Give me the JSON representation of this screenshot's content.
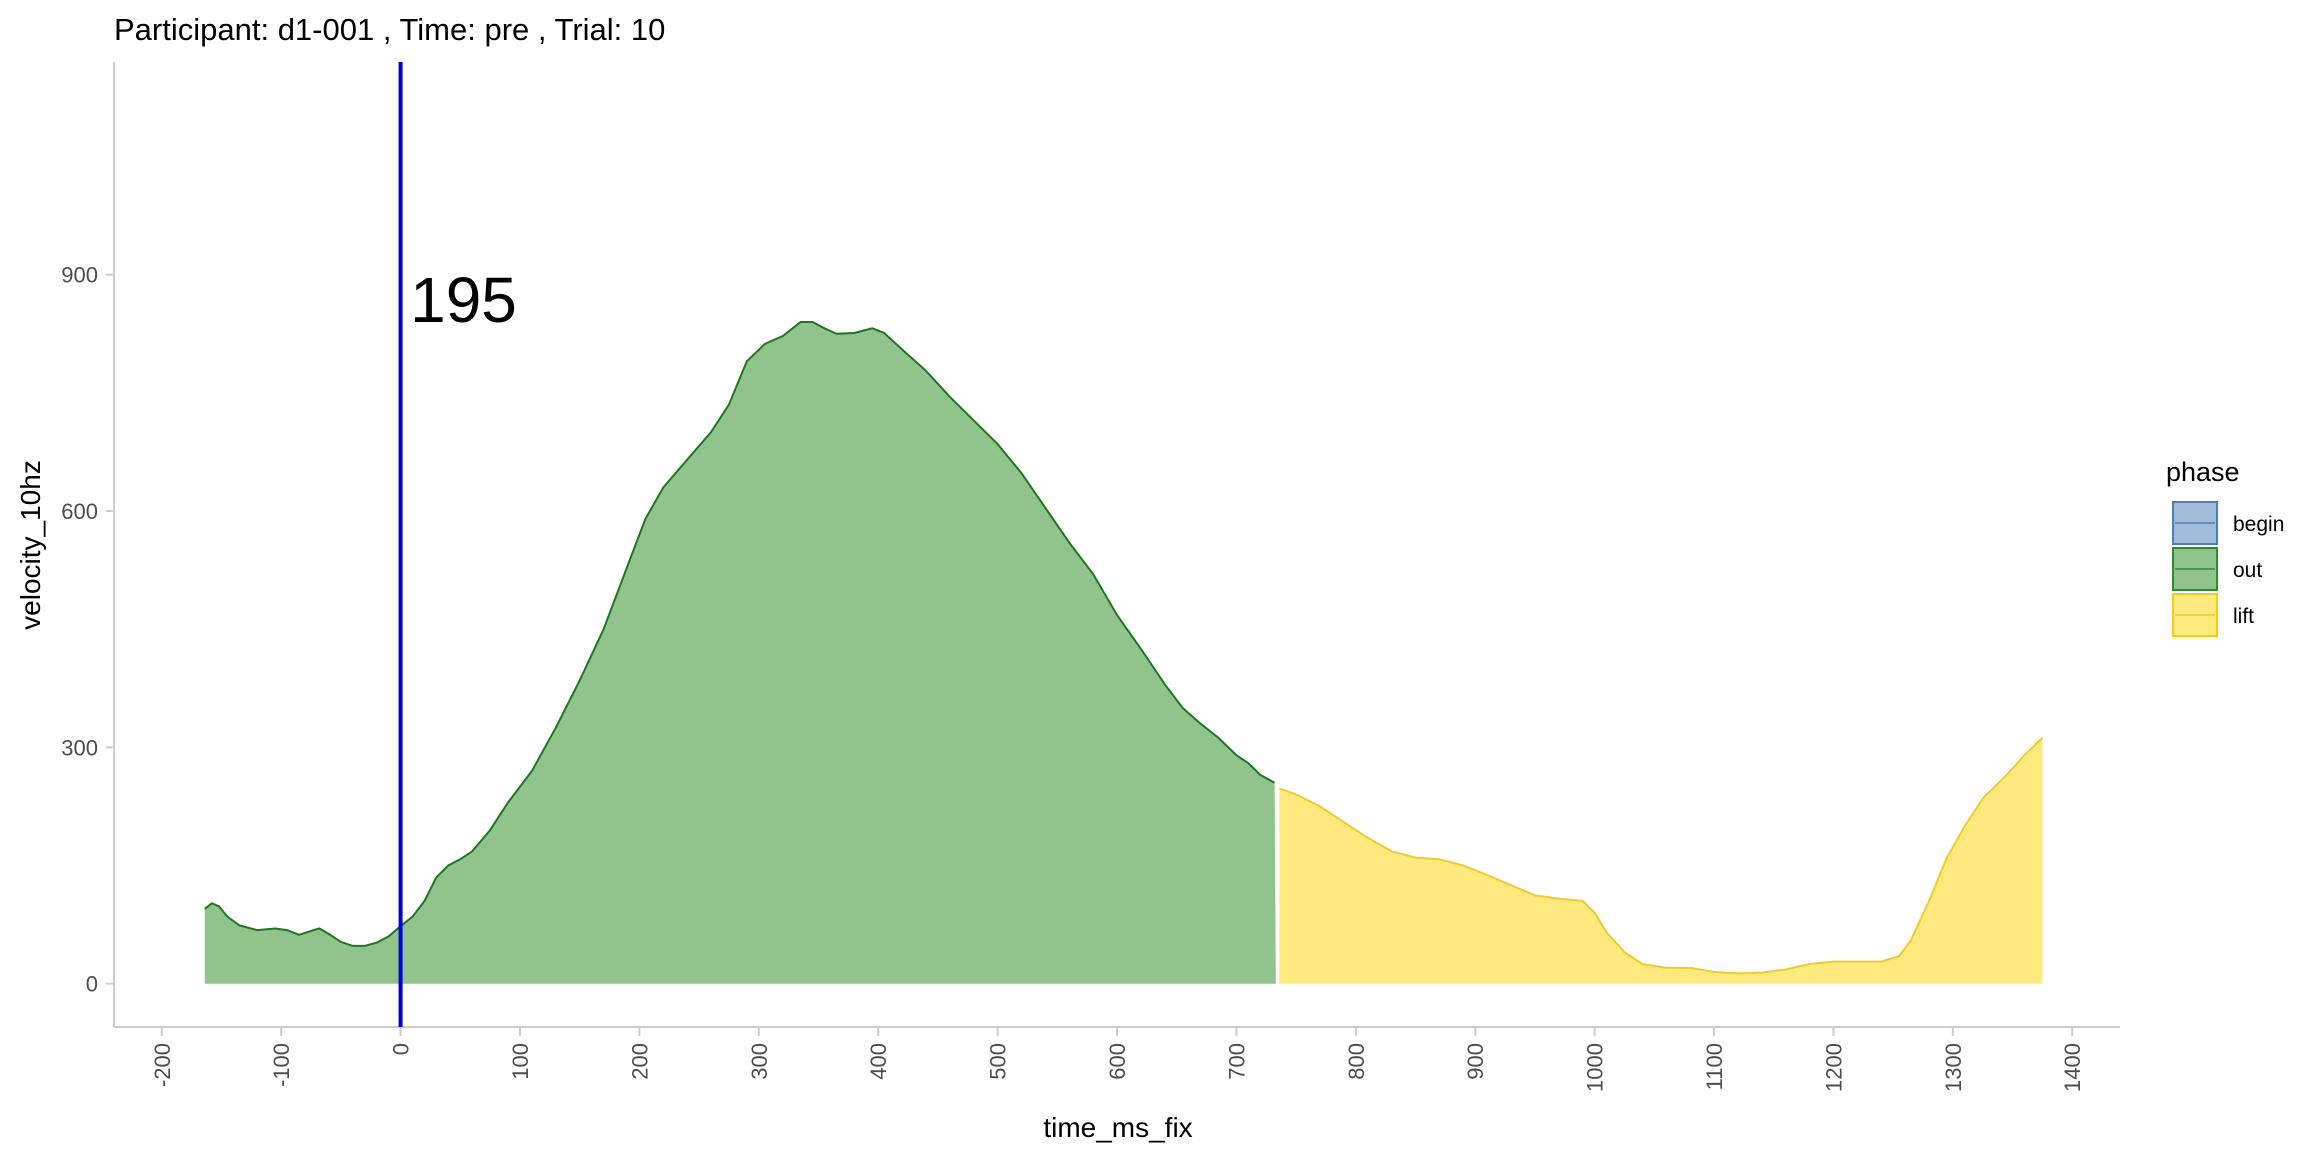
{
  "chart_data": {
    "type": "area",
    "title": "Participant:  d1-001 , Time: pre , Trial:  10",
    "xlabel": "time_ms_fix",
    "ylabel": "velocity_10hz",
    "xlim": [
      -240,
      1440
    ],
    "ylim": [
      -55,
      1170
    ],
    "x_ticks": [
      -200,
      -100,
      0,
      100,
      200,
      300,
      400,
      500,
      600,
      700,
      800,
      900,
      1000,
      1100,
      1200,
      1300,
      1400
    ],
    "y_ticks": [
      0,
      300,
      600,
      900
    ],
    "grid": false,
    "legend": {
      "title": "phase",
      "position": "right",
      "items": [
        {
          "label": "begin",
          "fill": "#a0bcd9",
          "stroke": "#4c7fb8"
        },
        {
          "label": "out",
          "fill": "#91c48c",
          "stroke": "#2e8b2e"
        },
        {
          "label": "lift",
          "fill": "#fee97e",
          "stroke": "#f2cd1c"
        }
      ]
    },
    "vline": {
      "x": 0,
      "color": "#0000dd"
    },
    "annotation": {
      "text": "195",
      "x": 8,
      "y": 840
    },
    "series": [
      {
        "name": "out",
        "fill": "#91c48c",
        "stroke": "#1a7a1a",
        "points": [
          [
            -164,
            95
          ],
          [
            -158,
            102
          ],
          [
            -152,
            98
          ],
          [
            -145,
            85
          ],
          [
            -135,
            74
          ],
          [
            -120,
            68
          ],
          [
            -105,
            70
          ],
          [
            -95,
            68
          ],
          [
            -85,
            62
          ],
          [
            -75,
            67
          ],
          [
            -68,
            70
          ],
          [
            -60,
            63
          ],
          [
            -50,
            53
          ],
          [
            -40,
            48
          ],
          [
            -30,
            48
          ],
          [
            -20,
            52
          ],
          [
            -10,
            60
          ],
          [
            0,
            73
          ],
          [
            10,
            85
          ],
          [
            20,
            105
          ],
          [
            30,
            135
          ],
          [
            40,
            150
          ],
          [
            50,
            158
          ],
          [
            60,
            168
          ],
          [
            75,
            195
          ],
          [
            90,
            230
          ],
          [
            110,
            270
          ],
          [
            130,
            325
          ],
          [
            150,
            385
          ],
          [
            170,
            450
          ],
          [
            190,
            530
          ],
          [
            205,
            590
          ],
          [
            220,
            630
          ],
          [
            240,
            665
          ],
          [
            260,
            700
          ],
          [
            275,
            735
          ],
          [
            290,
            790
          ],
          [
            305,
            812
          ],
          [
            320,
            822
          ],
          [
            335,
            840
          ],
          [
            345,
            840
          ],
          [
            355,
            832
          ],
          [
            365,
            825
          ],
          [
            380,
            826
          ],
          [
            395,
            832
          ],
          [
            405,
            826
          ],
          [
            420,
            805
          ],
          [
            440,
            778
          ],
          [
            460,
            745
          ],
          [
            480,
            715
          ],
          [
            500,
            685
          ],
          [
            520,
            648
          ],
          [
            540,
            604
          ],
          [
            560,
            560
          ],
          [
            580,
            520
          ],
          [
            600,
            468
          ],
          [
            620,
            425
          ],
          [
            640,
            380
          ],
          [
            655,
            350
          ],
          [
            670,
            330
          ],
          [
            685,
            312
          ],
          [
            700,
            290
          ],
          [
            710,
            280
          ],
          [
            720,
            265
          ],
          [
            732,
            255
          ],
          [
            733,
            0
          ],
          [
            -164,
            0
          ]
        ]
      },
      {
        "name": "lift",
        "fill": "#fee97e",
        "stroke": "#f2cd1c",
        "points": [
          [
            736,
            248
          ],
          [
            750,
            240
          ],
          [
            770,
            225
          ],
          [
            790,
            205
          ],
          [
            810,
            185
          ],
          [
            830,
            168
          ],
          [
            850,
            160
          ],
          [
            870,
            158
          ],
          [
            890,
            150
          ],
          [
            910,
            138
          ],
          [
            930,
            125
          ],
          [
            950,
            112
          ],
          [
            970,
            108
          ],
          [
            990,
            105
          ],
          [
            1000,
            90
          ],
          [
            1010,
            65
          ],
          [
            1025,
            40
          ],
          [
            1040,
            25
          ],
          [
            1060,
            20
          ],
          [
            1080,
            20
          ],
          [
            1100,
            15
          ],
          [
            1120,
            13
          ],
          [
            1140,
            14
          ],
          [
            1160,
            18
          ],
          [
            1180,
            25
          ],
          [
            1200,
            28
          ],
          [
            1220,
            28
          ],
          [
            1240,
            28
          ],
          [
            1255,
            35
          ],
          [
            1265,
            55
          ],
          [
            1280,
            105
          ],
          [
            1295,
            160
          ],
          [
            1310,
            200
          ],
          [
            1325,
            235
          ],
          [
            1345,
            265
          ],
          [
            1360,
            290
          ],
          [
            1375,
            312
          ],
          [
            1375,
            0
          ],
          [
            736,
            0
          ]
        ]
      }
    ]
  }
}
